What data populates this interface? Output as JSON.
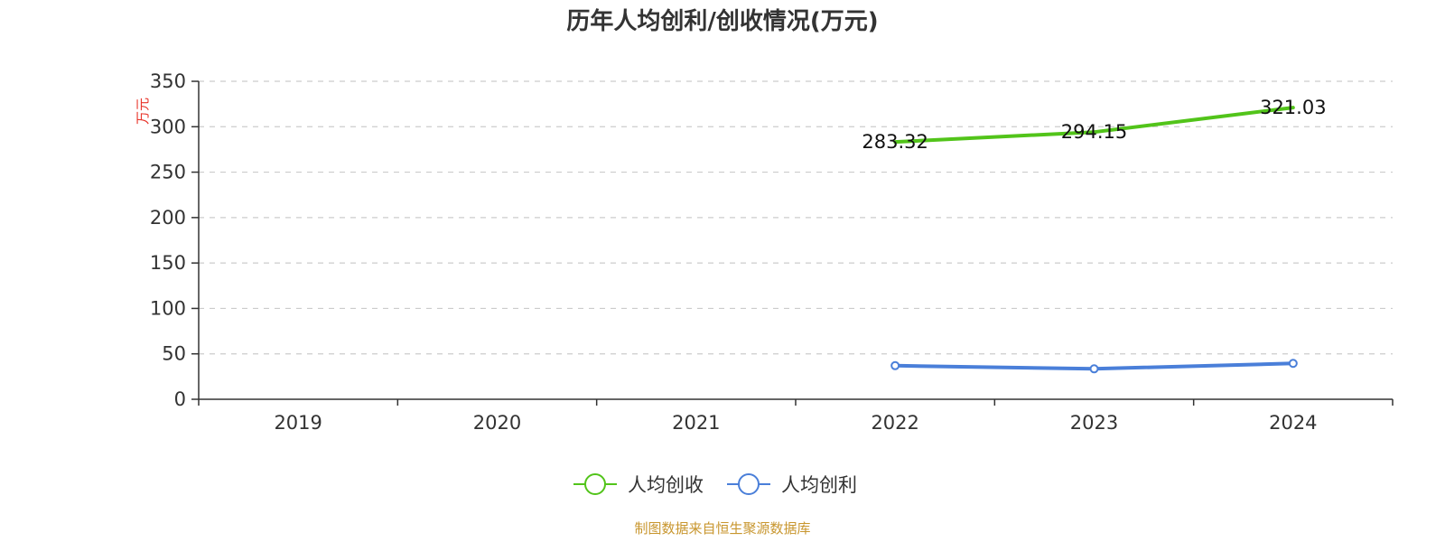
{
  "chart_data": {
    "type": "line",
    "title": "历年人均创利/创收情况(万元)",
    "ylabel": "万元",
    "xlabel": "",
    "categories": [
      "2019",
      "2020",
      "2021",
      "2022",
      "2023",
      "2024"
    ],
    "ylim": [
      0,
      350
    ],
    "yticks": [
      0,
      50,
      100,
      150,
      200,
      250,
      300,
      350
    ],
    "grid": true,
    "legend_position": "bottom",
    "series": [
      {
        "name": "人均创收",
        "color": "#52c41a",
        "values": [
          null,
          null,
          null,
          283.32,
          294.15,
          321.03
        ],
        "labels": [
          "",
          "",
          "",
          "283.32",
          "294.15",
          "321.03"
        ],
        "markers": false
      },
      {
        "name": "人均创利",
        "color": "#4a7fd9",
        "values": [
          null,
          null,
          null,
          37,
          33.5,
          39.5
        ],
        "labels": [
          "",
          "",
          "",
          "",
          "",
          ""
        ],
        "markers": true
      }
    ],
    "source": "制图数据来自恒生聚源数据库",
    "source_color": "#c8962e"
  }
}
